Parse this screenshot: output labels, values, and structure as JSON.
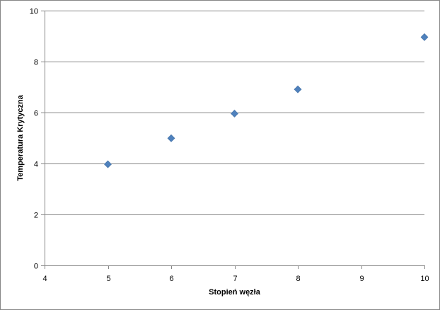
{
  "chart_data": {
    "type": "scatter",
    "title": "",
    "xlabel": "Stopień węzła",
    "ylabel": "Temperatura Krytyczna",
    "xlim": [
      4,
      10
    ],
    "ylim": [
      0,
      10
    ],
    "x_ticks": [
      "4",
      "5",
      "6",
      "7",
      "8",
      "9",
      "10"
    ],
    "y_ticks": [
      "0",
      "2",
      "4",
      "6",
      "8",
      "10"
    ],
    "grid": "horizontal",
    "legend": "none",
    "marker": "diamond",
    "series": [
      {
        "color": "#4f81bd",
        "points": [
          {
            "x": 5,
            "y": 3.97
          },
          {
            "x": 6,
            "y": 4.99
          },
          {
            "x": 7,
            "y": 5.96
          },
          {
            "x": 8,
            "y": 6.91
          },
          {
            "x": 10,
            "y": 8.96
          }
        ]
      }
    ]
  }
}
